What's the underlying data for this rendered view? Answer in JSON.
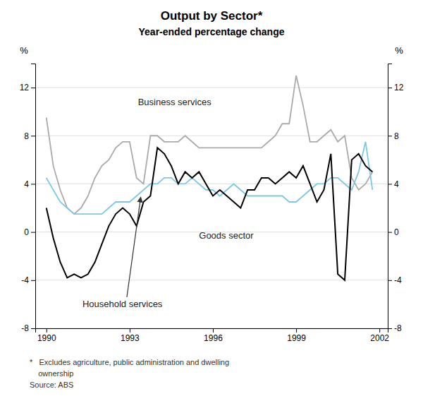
{
  "chart_data": {
    "type": "line",
    "title": "Output by Sector*",
    "subtitle": "Year-ended percentage change",
    "y_label": "%",
    "y2_label": "%",
    "footnotes": [
      "*   Excludes agriculture, public administration and dwelling",
      "    ownership",
      "Source: ABS"
    ],
    "x": [
      1990.0,
      1990.25,
      1990.5,
      1990.75,
      1991.0,
      1991.25,
      1991.5,
      1991.75,
      1992.0,
      1992.25,
      1992.5,
      1992.75,
      1993.0,
      1993.25,
      1993.5,
      1993.75,
      1994.0,
      1994.25,
      1994.5,
      1994.75,
      1995.0,
      1995.25,
      1995.5,
      1995.75,
      1996.0,
      1996.25,
      1996.5,
      1996.75,
      1997.0,
      1997.25,
      1997.5,
      1997.75,
      1998.0,
      1998.25,
      1998.5,
      1998.75,
      1999.0,
      1999.25,
      1999.5,
      1999.75,
      2000.0,
      2000.25,
      2000.5,
      2000.75,
      2001.0,
      2001.25,
      2001.5,
      2001.75
    ],
    "xlim": [
      1989.6,
      2002.3
    ],
    "xticks": [
      1990,
      1993,
      1996,
      1999,
      2002
    ],
    "ylim": [
      -8,
      14
    ],
    "yticks": [
      -8,
      -4,
      0,
      4,
      8,
      12
    ],
    "y2lim": [
      -8,
      14
    ],
    "y2ticks": [
      -8,
      -4,
      0,
      4,
      8,
      12
    ],
    "grid": true,
    "series": [
      {
        "name": "Business services",
        "color": "#aaaaaa",
        "values": [
          9.5,
          5.5,
          3.5,
          2.0,
          1.5,
          2.0,
          3.0,
          4.5,
          5.5,
          6.0,
          7.0,
          7.5,
          7.5,
          4.5,
          4.0,
          8.0,
          8.0,
          7.5,
          7.5,
          7.5,
          8.0,
          7.5,
          7.0,
          7.0,
          7.0,
          7.0,
          7.0,
          7.0,
          7.0,
          7.0,
          7.0,
          7.0,
          7.5,
          8.0,
          9.0,
          9.0,
          13.0,
          10.5,
          7.5,
          7.5,
          8.0,
          8.5,
          7.5,
          8.0,
          4.5,
          3.5,
          4.0,
          5.0
        ]
      },
      {
        "name": "Household services",
        "color": "#7ec8e3",
        "values": [
          4.5,
          3.5,
          2.5,
          2.0,
          1.5,
          1.5,
          1.5,
          1.5,
          1.5,
          2.0,
          2.5,
          2.5,
          2.5,
          3.0,
          3.5,
          4.0,
          4.0,
          4.5,
          4.5,
          4.0,
          4.0,
          4.5,
          4.0,
          3.5,
          3.5,
          3.0,
          3.5,
          4.0,
          3.5,
          3.0,
          3.0,
          3.0,
          3.0,
          3.0,
          3.0,
          2.5,
          2.5,
          3.0,
          3.5,
          4.0,
          4.0,
          4.5,
          4.5,
          4.0,
          3.5,
          5.0,
          7.5,
          3.5
        ]
      },
      {
        "name": "Goods sector",
        "color": "#000000",
        "values": [
          2.0,
          -0.5,
          -2.5,
          -3.8,
          -3.5,
          -3.8,
          -3.5,
          -2.5,
          -1.0,
          0.5,
          1.5,
          2.0,
          1.5,
          0.5,
          2.5,
          3.0,
          7.0,
          6.5,
          5.5,
          4.0,
          5.0,
          4.5,
          5.0,
          4.0,
          3.0,
          3.5,
          3.0,
          2.5,
          2.0,
          3.5,
          3.5,
          4.5,
          4.5,
          4.0,
          4.5,
          5.0,
          4.5,
          5.5,
          4.0,
          2.5,
          3.5,
          6.5,
          -3.5,
          -4.0,
          6.0,
          6.5,
          5.5,
          5.0
        ]
      }
    ]
  }
}
